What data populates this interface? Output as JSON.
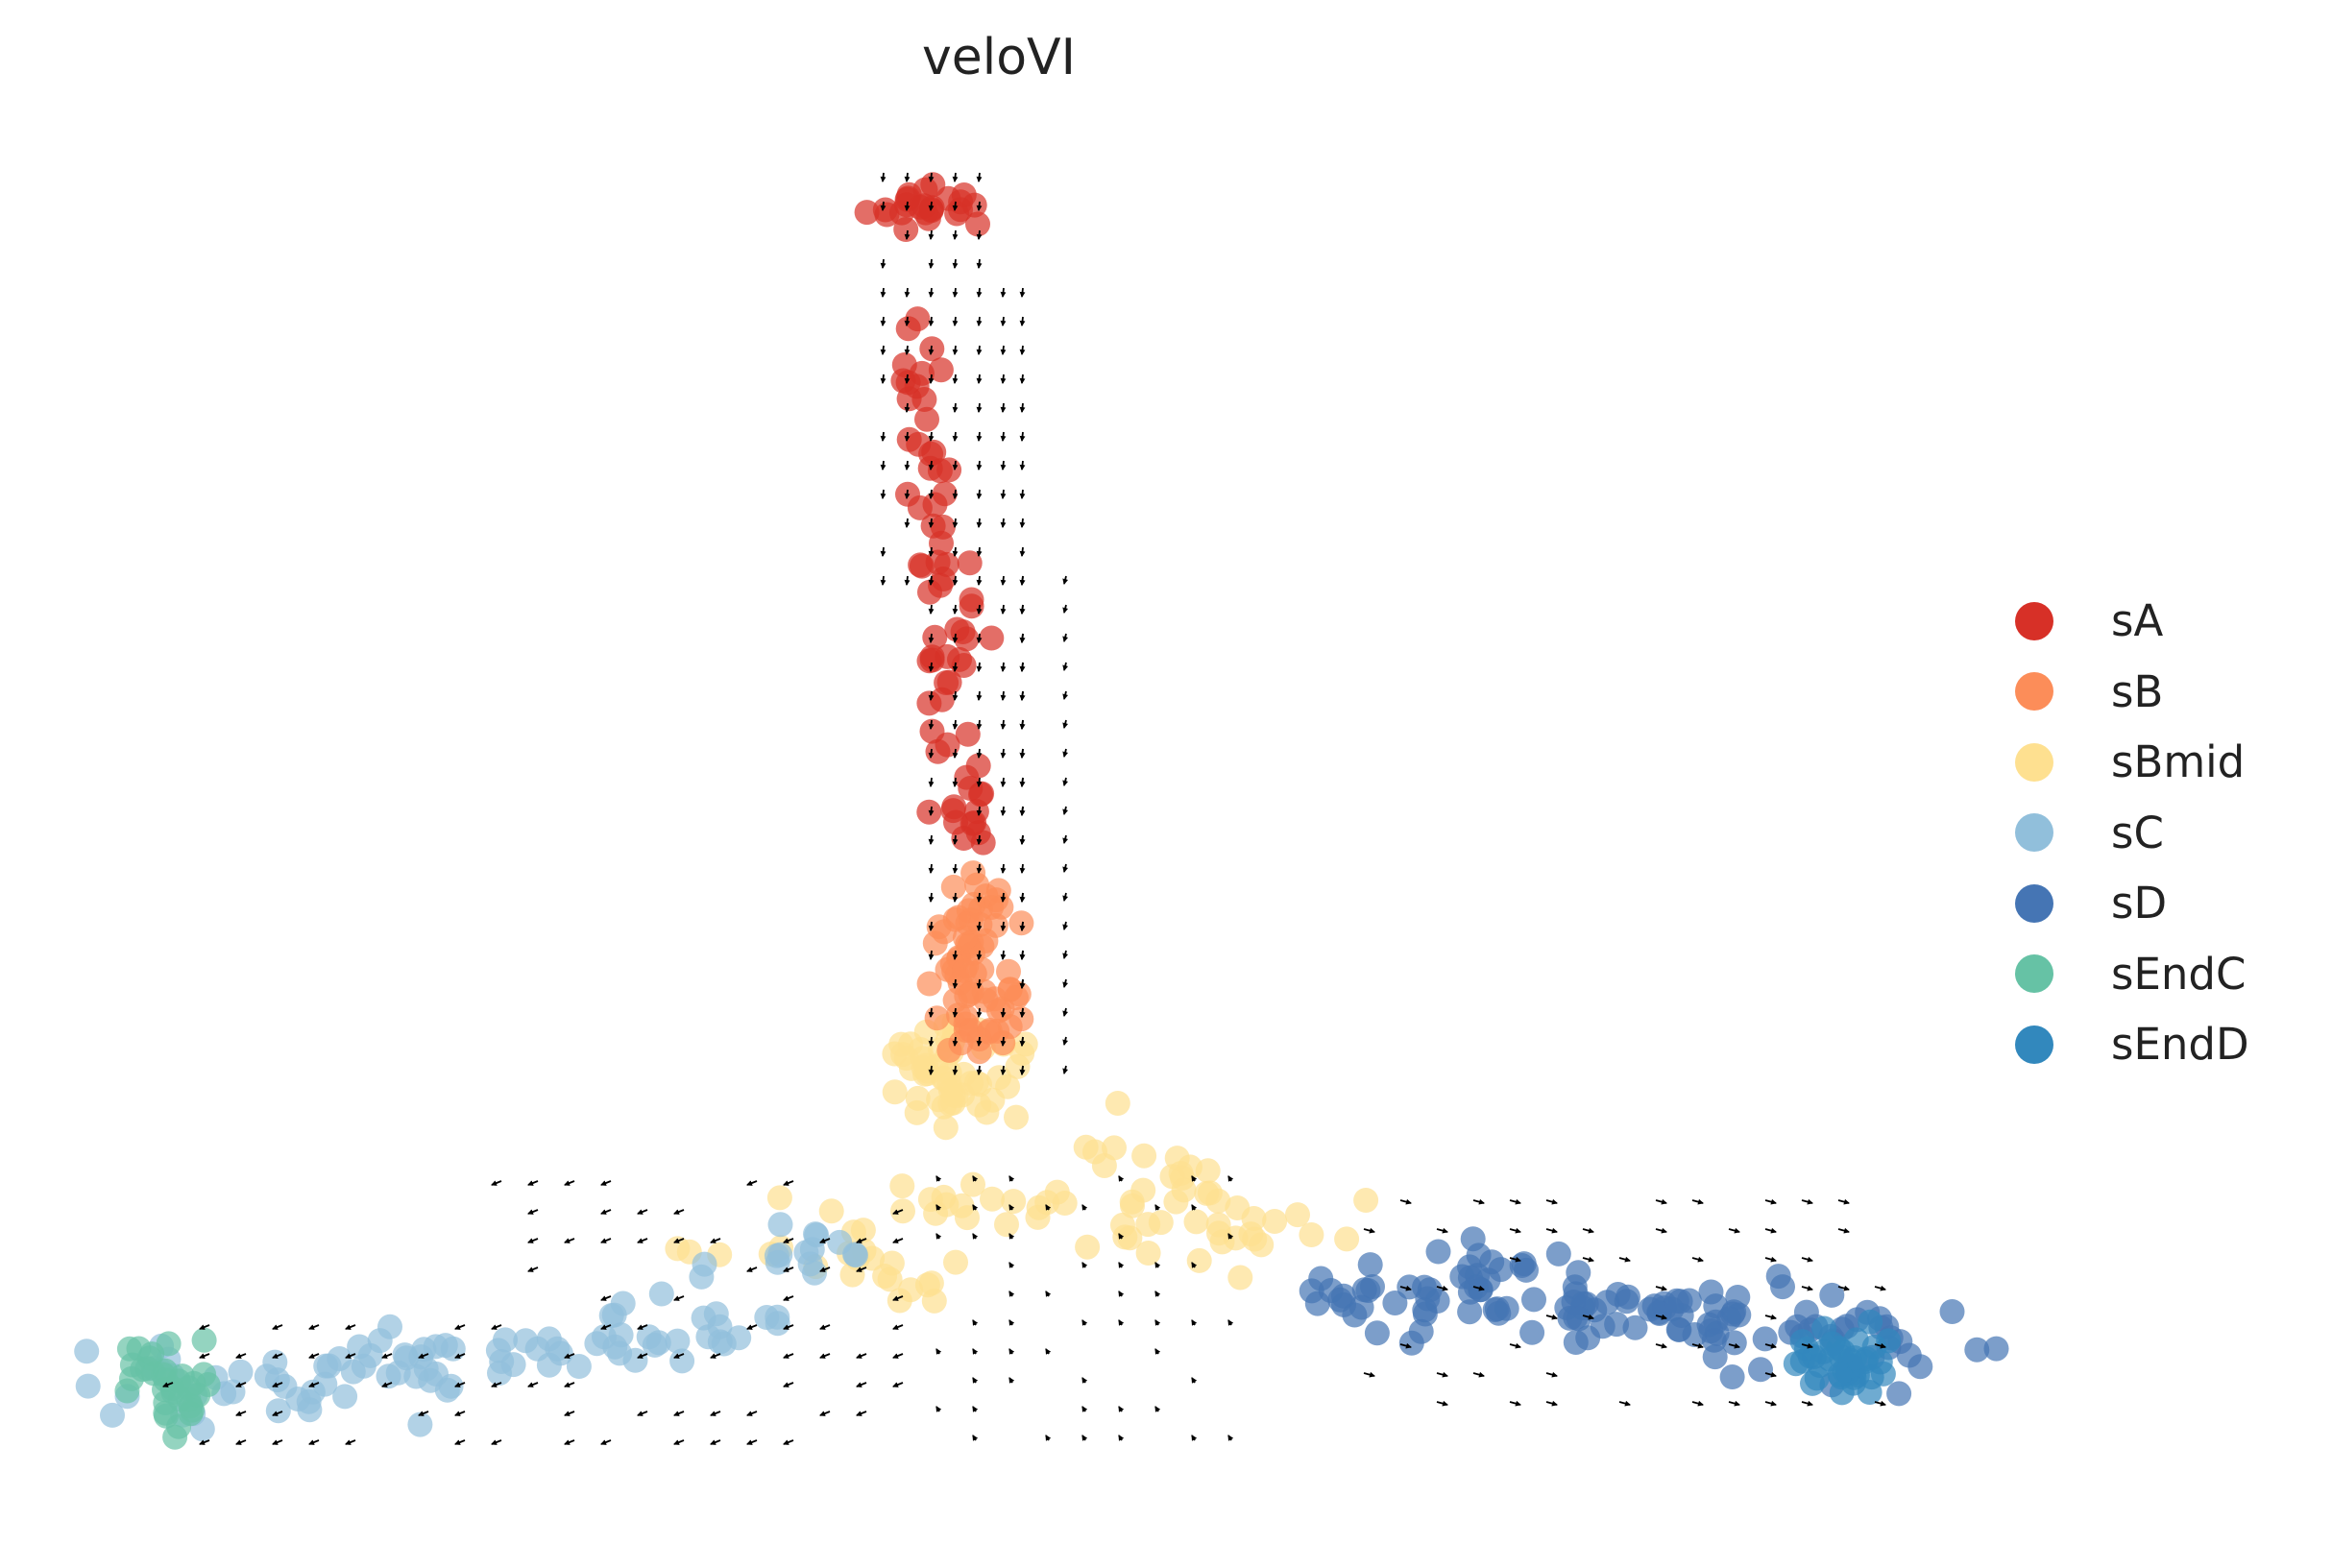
{
  "chart_data": {
    "type": "scatter",
    "title": "veloVI",
    "xlabel": "",
    "ylabel": "",
    "axes_visible": false,
    "grid": false,
    "legend_position": "right",
    "overlay": "velocity arrows (quiver) on grid",
    "series": [
      {
        "name": "sA",
        "color": "#d73027"
      },
      {
        "name": "sB",
        "color": "#fc8d59"
      },
      {
        "name": "sBmid",
        "color": "#fee090"
      },
      {
        "name": "sC",
        "color": "#91bfdb"
      },
      {
        "name": "sD",
        "color": "#4575b4"
      },
      {
        "name": "sEndC",
        "color": "#66c2a5"
      },
      {
        "name": "sEndD",
        "color": "#3288bd"
      }
    ]
  }
}
